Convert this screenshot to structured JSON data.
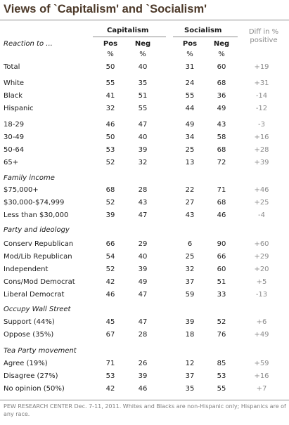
{
  "title": "Views of `Capitalism' and `Socialism'",
  "headers": {
    "capitalism": "Capitalism",
    "socialism": "Socialism",
    "diff": "Diff in % positive",
    "reaction": "Reaction to ...",
    "pos": "Pos",
    "neg": "Neg",
    "pct": "%"
  },
  "footnote": "PEW RESEARCH CENTER Dec. 7-11, 2011. Whites and Blacks are non-Hispanic only; Hispanics are of any race.",
  "chart_data": {
    "type": "table",
    "columns": [
      "Capitalism Pos %",
      "Capitalism Neg %",
      "Socialism Pos %",
      "Socialism Neg %",
      "Diff in % positive"
    ],
    "groups": [
      {
        "name": "",
        "rows": [
          {
            "label": "Total",
            "cap_pos": 50,
            "cap_neg": 40,
            "soc_pos": 31,
            "soc_neg": 60,
            "diff": "+19"
          }
        ]
      },
      {
        "name": "",
        "rows": [
          {
            "label": "White",
            "cap_pos": 55,
            "cap_neg": 35,
            "soc_pos": 24,
            "soc_neg": 68,
            "diff": "+31"
          },
          {
            "label": "Black",
            "cap_pos": 41,
            "cap_neg": 51,
            "soc_pos": 55,
            "soc_neg": 36,
            "diff": "-14"
          },
          {
            "label": "Hispanic",
            "cap_pos": 32,
            "cap_neg": 55,
            "soc_pos": 44,
            "soc_neg": 49,
            "diff": "-12"
          }
        ]
      },
      {
        "name": "",
        "rows": [
          {
            "label": "18-29",
            "cap_pos": 46,
            "cap_neg": 47,
            "soc_pos": 49,
            "soc_neg": 43,
            "diff": "-3"
          },
          {
            "label": "30-49",
            "cap_pos": 50,
            "cap_neg": 40,
            "soc_pos": 34,
            "soc_neg": 58,
            "diff": "+16"
          },
          {
            "label": "50-64",
            "cap_pos": 53,
            "cap_neg": 39,
            "soc_pos": 25,
            "soc_neg": 68,
            "diff": "+28"
          },
          {
            "label": "65+",
            "cap_pos": 52,
            "cap_neg": 32,
            "soc_pos": 13,
            "soc_neg": 72,
            "diff": "+39"
          }
        ]
      },
      {
        "name": "Family income",
        "rows": [
          {
            "label": "$75,000+",
            "cap_pos": 68,
            "cap_neg": 28,
            "soc_pos": 22,
            "soc_neg": 71,
            "diff": "+46"
          },
          {
            "label": "$30,000-$74,999",
            "cap_pos": 52,
            "cap_neg": 43,
            "soc_pos": 27,
            "soc_neg": 68,
            "diff": "+25"
          },
          {
            "label": "Less than $30,000",
            "cap_pos": 39,
            "cap_neg": 47,
            "soc_pos": 43,
            "soc_neg": 46,
            "diff": "-4"
          }
        ]
      },
      {
        "name": "Party and ideology",
        "rows": [
          {
            "label": "Conserv Republican",
            "cap_pos": 66,
            "cap_neg": 29,
            "soc_pos": 6,
            "soc_neg": 90,
            "diff": "+60"
          },
          {
            "label": "Mod/Lib Republican",
            "cap_pos": 54,
            "cap_neg": 40,
            "soc_pos": 25,
            "soc_neg": 66,
            "diff": "+29"
          },
          {
            "label": "Independent",
            "cap_pos": 52,
            "cap_neg": 39,
            "soc_pos": 32,
            "soc_neg": 60,
            "diff": "+20"
          },
          {
            "label": "Cons/Mod Democrat",
            "cap_pos": 42,
            "cap_neg": 49,
            "soc_pos": 37,
            "soc_neg": 51,
            "diff": "+5"
          },
          {
            "label": "Liberal Democrat",
            "cap_pos": 46,
            "cap_neg": 47,
            "soc_pos": 59,
            "soc_neg": 33,
            "diff": "-13"
          }
        ]
      },
      {
        "name": "Occupy Wall Street",
        "rows": [
          {
            "label": "Support (44%)",
            "cap_pos": 45,
            "cap_neg": 47,
            "soc_pos": 39,
            "soc_neg": 52,
            "diff": "+6"
          },
          {
            "label": "Oppose (35%)",
            "cap_pos": 67,
            "cap_neg": 28,
            "soc_pos": 18,
            "soc_neg": 76,
            "diff": "+49"
          }
        ]
      },
      {
        "name": "Tea Party movement",
        "rows": [
          {
            "label": "Agree (19%)",
            "cap_pos": 71,
            "cap_neg": 26,
            "soc_pos": 12,
            "soc_neg": 85,
            "diff": "+59"
          },
          {
            "label": "Disagree (27%)",
            "cap_pos": 53,
            "cap_neg": 39,
            "soc_pos": 37,
            "soc_neg": 53,
            "diff": "+16"
          },
          {
            "label": "No opinion (50%)",
            "cap_pos": 42,
            "cap_neg": 46,
            "soc_pos": 35,
            "soc_neg": 55,
            "diff": "+7"
          }
        ]
      }
    ]
  }
}
